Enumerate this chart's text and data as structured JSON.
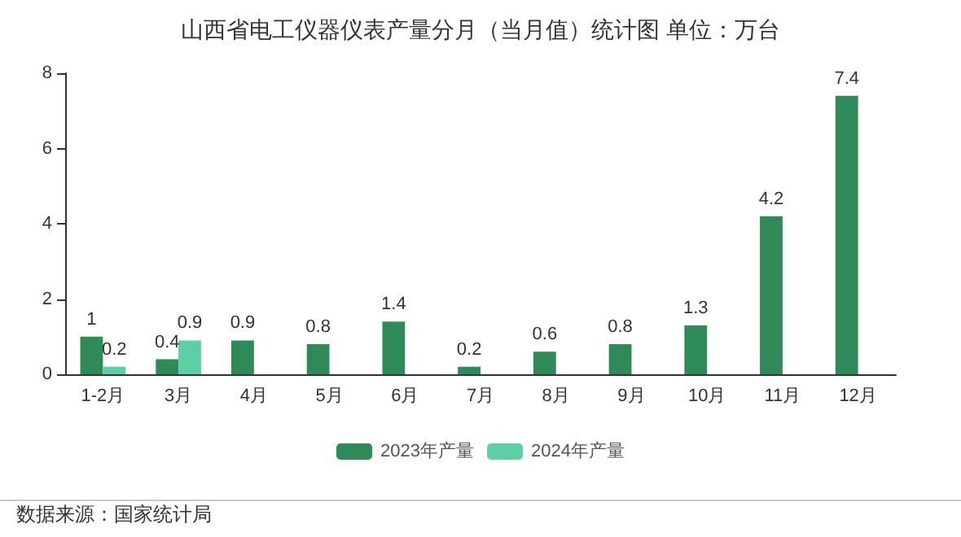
{
  "chart_data": {
    "type": "bar",
    "title": "山西省电工仪器仪表产量分月（当月值）统计图 单位：万台",
    "categories": [
      "1-2月",
      "3月",
      "4月",
      "5月",
      "6月",
      "7月",
      "8月",
      "9月",
      "10月",
      "11月",
      "12月"
    ],
    "series": [
      {
        "name": "2023年产量",
        "color": "#2e8b57",
        "values": [
          1,
          0.4,
          0.9,
          0.8,
          1.4,
          0.2,
          0.6,
          0.8,
          1.3,
          4.2,
          7.4
        ]
      },
      {
        "name": "2024年产量",
        "color": "#5ccfa5",
        "values": [
          0.2,
          0.9,
          null,
          null,
          null,
          null,
          null,
          null,
          null,
          null,
          null
        ]
      }
    ],
    "ylim": [
      0,
      8
    ],
    "yticks": [
      0,
      2,
      4,
      6,
      8
    ],
    "grid": false,
    "legend": "bottom",
    "data_labels": true,
    "annotations": [
      "数据来源：国家统计局"
    ]
  }
}
